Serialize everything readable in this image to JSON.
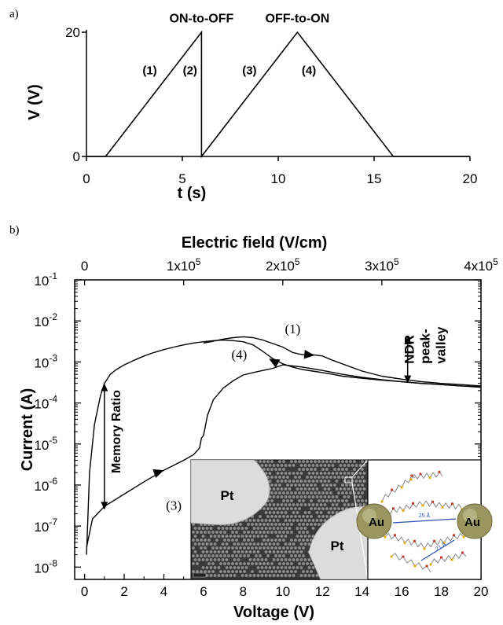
{
  "chart_data": [
    {
      "panel_label": "a)",
      "type": "line",
      "xlabel": "t (s)",
      "ylabel": "V (V)",
      "xlim": [
        0,
        20
      ],
      "ylim": [
        0,
        20
      ],
      "x_ticks": [
        0,
        5,
        10,
        15,
        20
      ],
      "y_ticks": [
        0,
        20
      ],
      "x": [
        0,
        1,
        6,
        6,
        11,
        16,
        20
      ],
      "y": [
        0,
        0,
        20,
        0,
        20,
        0,
        0
      ],
      "annotations": [
        {
          "text": "ON-to-OFF",
          "x": 6,
          "y": 20.8
        },
        {
          "text": "OFF-to-ON",
          "x": 11,
          "y": 20.8
        },
        {
          "text": "(1)",
          "x": 3.3,
          "y": 14
        },
        {
          "text": "(2)",
          "x": 5.4,
          "y": 14
        },
        {
          "text": "(3)",
          "x": 8.5,
          "y": 14
        },
        {
          "text": "(4)",
          "x": 11.6,
          "y": 14
        }
      ]
    },
    {
      "panel_label": "b)",
      "type": "line",
      "xlabel": "Voltage (V)",
      "ylabel": "Current (A)",
      "x2label": "Electric field (V/cm)",
      "xlim": [
        -0.5,
        20
      ],
      "ylim_log10": [
        -8.3,
        -1
      ],
      "yscale": "log",
      "x_ticks": [
        0,
        2,
        4,
        6,
        8,
        10,
        12,
        14,
        16,
        18,
        20
      ],
      "y_tick_exponents": [
        -8,
        -7,
        -6,
        -5,
        -4,
        -3,
        -2,
        -1
      ],
      "x2_ticks": [
        {
          "base": "0",
          "exp": "",
          "v": 0
        },
        {
          "base": "1x10",
          "exp": "5",
          "v": 5
        },
        {
          "base": "2x10",
          "exp": "5",
          "v": 10
        },
        {
          "base": "3x10",
          "exp": "5",
          "v": 15
        },
        {
          "base": "4x10",
          "exp": "5",
          "v": 20
        }
      ],
      "series": [
        {
          "x": [
            0.1,
            0.25,
            0.5,
            0.8,
            1.0,
            1.3,
            1.6,
            2.0,
            2.5,
            3.0,
            3.5,
            4.0,
            4.5,
            5.0,
            5.5,
            6.0,
            6.5,
            7.0,
            7.5,
            8.0,
            8.5,
            9.0,
            9.5,
            10.0,
            10.5,
            11.0,
            11.5,
            12.0,
            12.5,
            13.0,
            14.0,
            15.0,
            16.0,
            17.0,
            18.0,
            19.0,
            20.0
          ],
          "y": [
            2e-08,
            2e-06,
            3e-05,
            0.00015,
            0.0003,
            0.0005,
            0.00065,
            0.00085,
            0.0011,
            0.0014,
            0.0017,
            0.002,
            0.0023,
            0.0026,
            0.0029,
            0.0031,
            0.0033,
            0.0034,
            0.0033,
            0.0031,
            0.0026,
            0.0018,
            0.0012,
            0.0009,
            0.00075,
            0.00065,
            0.0006,
            0.00055,
            0.0005,
            0.00045,
            0.0004,
            0.00036,
            0.00033,
            0.0003,
            0.00028,
            0.00026,
            0.00025
          ]
        },
        {
          "x": [
            0.1,
            0.4,
            1.0,
            2.0,
            3.0,
            4.0,
            5.0,
            5.5,
            5.8,
            5.9,
            6.0,
            6.2,
            6.5,
            7.0,
            7.5,
            8.0,
            8.5,
            9.0,
            9.5,
            10.0,
            10.5,
            11.0,
            11.5,
            12.0,
            13.0,
            14.0,
            15.0,
            16.0,
            17.0,
            18.0,
            19.0,
            20.0
          ],
          "y": [
            3e-08,
            1.5e-07,
            3e-07,
            6e-07,
            1.2e-06,
            2.3e-06,
            4e-06,
            5.5e-06,
            8e-06,
            1.4e-05,
            1.6e-05,
            5e-05,
            0.00012,
            0.00023,
            0.00035,
            0.00048,
            0.00055,
            0.00062,
            0.0007,
            0.00085,
            0.0008,
            0.00075,
            0.00068,
            0.00062,
            0.0005,
            0.00042,
            0.00037,
            0.00033,
            0.0003,
            0.00028,
            0.00026,
            0.00024
          ]
        },
        {
          "x": [
            6.0,
            6.5,
            7.0,
            7.5,
            8.0,
            8.5,
            9.0,
            9.5,
            10.0,
            10.5,
            11.0,
            11.5,
            12.0,
            12.5,
            13.0,
            14.0,
            15.0,
            16.0,
            17.0,
            18.0,
            19.0,
            20.0
          ],
          "y": [
            0.0029,
            0.0032,
            0.0036,
            0.0039,
            0.0041,
            0.0039,
            0.0034,
            0.0028,
            0.0023,
            0.0017,
            0.0015,
            0.0015,
            0.0014,
            0.0011,
            0.0009,
            0.0006,
            0.00045,
            0.00038,
            0.00033,
            0.0003,
            0.00028,
            0.00026
          ]
        }
      ],
      "annotations": [
        {
          "text": "(1)",
          "x": 10.5,
          "y": 0.005
        },
        {
          "text": "(4)",
          "x": 7.8,
          "y": 0.0012
        },
        {
          "text": "(3)",
          "x": 4.5,
          "y": 2.5e-07
        },
        {
          "text": "Memory Ratio",
          "x": 1.8,
          "y": 2e-05
        },
        {
          "text": "NDR",
          "x": 16.6,
          "y": 0.0015
        },
        {
          "text": "peak-",
          "x": 17.4,
          "y": 0.0015
        },
        {
          "text": "valley",
          "x": 18.2,
          "y": 0.0015
        }
      ],
      "inset_labels": [
        "Pt",
        "Pt",
        "Au",
        "Au",
        "25 Å",
        "21 Å"
      ]
    }
  ]
}
